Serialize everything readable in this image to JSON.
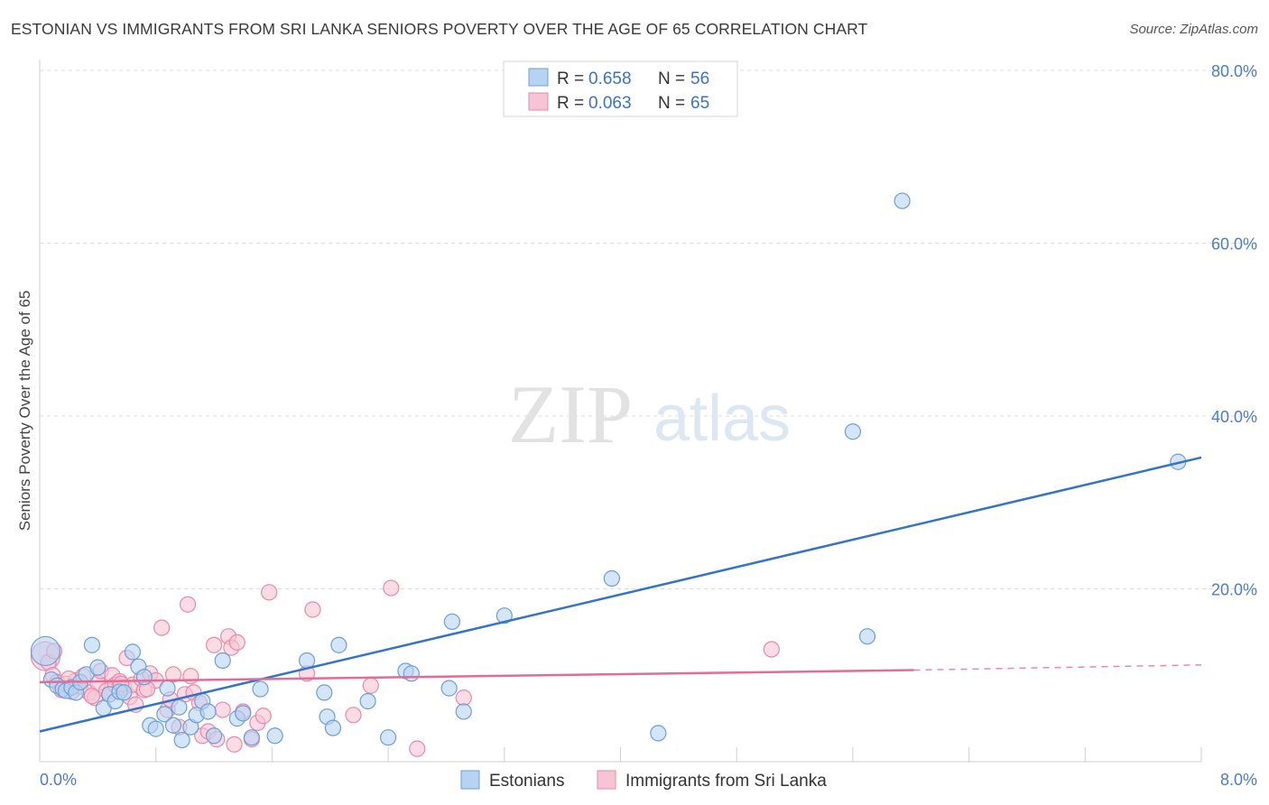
{
  "title": "ESTONIAN VS IMMIGRANTS FROM SRI LANKA SENIORS POVERTY OVER THE AGE OF 65 CORRELATION CHART",
  "source": "Source: ZipAtlas.com",
  "watermark": {
    "zip": "ZIP",
    "atlas": "atlas"
  },
  "colors": {
    "blue_fill": "#b8d3f2",
    "blue_stroke": "#6c9fd8",
    "blue_line": "#3373c9",
    "pink_fill": "#f7c4d4",
    "pink_stroke": "#e889aa",
    "pink_line": "#e36b95",
    "tick_text": "#4a7cc7",
    "grid": "#dddddd"
  },
  "legend": {
    "rows": [
      {
        "r_label": "R = ",
        "r_value": "0.658",
        "n_label": "N = ",
        "n_value": "56"
      },
      {
        "r_label": "R = ",
        "r_value": "0.063",
        "n_label": "N = ",
        "n_value": "65"
      }
    ]
  },
  "chart_data": {
    "type": "scatter",
    "title": "ESTONIAN VS IMMIGRANTS FROM SRI LANKA SENIORS POVERTY OVER THE AGE OF 65 CORRELATION CHART",
    "xlabel": "",
    "ylabel": "Seniors Poverty Over the Age of 65",
    "xlim": [
      0,
      8
    ],
    "ylim": [
      0,
      80
    ],
    "x_tick_labels": [
      "0.0%",
      "8.0%"
    ],
    "y_tick_labels": [
      "20.0%",
      "40.0%",
      "60.0%",
      "80.0%"
    ],
    "y_ticks": [
      20,
      40,
      60,
      80
    ],
    "grid": true,
    "legend_position": "top-center",
    "series": [
      {
        "name": "Estonians",
        "r": 0.658,
        "n": 56,
        "trend": {
          "x": [
            0,
            8
          ],
          "y": [
            3.5,
            35.2
          ]
        },
        "points": [
          [
            0.04,
            12.8
          ],
          [
            0.08,
            9.5
          ],
          [
            0.12,
            8.8
          ],
          [
            0.16,
            8.4
          ],
          [
            0.18,
            8.2
          ],
          [
            0.22,
            8.6
          ],
          [
            0.25,
            8.0
          ],
          [
            0.28,
            9.2
          ],
          [
            0.32,
            10.1
          ],
          [
            0.36,
            13.5
          ],
          [
            0.4,
            10.9
          ],
          [
            0.44,
            6.2
          ],
          [
            0.48,
            7.8
          ],
          [
            0.52,
            7.0
          ],
          [
            0.55,
            8.1
          ],
          [
            0.58,
            8.0
          ],
          [
            0.64,
            12.7
          ],
          [
            0.68,
            11.0
          ],
          [
            0.72,
            9.8
          ],
          [
            0.76,
            4.2
          ],
          [
            0.8,
            3.8
          ],
          [
            0.86,
            5.5
          ],
          [
            0.88,
            8.5
          ],
          [
            0.92,
            4.2
          ],
          [
            0.96,
            6.3
          ],
          [
            0.98,
            2.5
          ],
          [
            1.04,
            4.0
          ],
          [
            1.08,
            5.4
          ],
          [
            1.12,
            7.0
          ],
          [
            1.16,
            5.8
          ],
          [
            1.2,
            3.0
          ],
          [
            1.26,
            11.7
          ],
          [
            1.36,
            5.0
          ],
          [
            1.4,
            5.6
          ],
          [
            1.46,
            2.8
          ],
          [
            1.52,
            8.4
          ],
          [
            1.62,
            3.0
          ],
          [
            1.84,
            11.7
          ],
          [
            1.96,
            8.0
          ],
          [
            1.98,
            5.2
          ],
          [
            2.02,
            3.9
          ],
          [
            2.06,
            13.5
          ],
          [
            2.26,
            7.0
          ],
          [
            2.4,
            2.8
          ],
          [
            2.52,
            10.5
          ],
          [
            2.56,
            10.2
          ],
          [
            2.82,
            8.5
          ],
          [
            2.84,
            16.2
          ],
          [
            2.92,
            5.8
          ],
          [
            3.2,
            16.9
          ],
          [
            3.94,
            21.2
          ],
          [
            4.26,
            3.3
          ],
          [
            5.6,
            38.2
          ],
          [
            5.7,
            14.5
          ],
          [
            5.94,
            64.9
          ],
          [
            7.84,
            34.7
          ]
        ]
      },
      {
        "name": "Immigrants from Sri Lanka",
        "r": 0.063,
        "n": 65,
        "trend": {
          "x": [
            0,
            6.02
          ],
          "y": [
            9.2,
            10.6
          ]
        },
        "trend_dashed": {
          "x": [
            6.02,
            8
          ],
          "y": [
            10.6,
            11.2
          ]
        },
        "points": [
          [
            0.04,
            12.2
          ],
          [
            0.06,
            11.5
          ],
          [
            0.09,
            10.0
          ],
          [
            0.12,
            9.2
          ],
          [
            0.15,
            8.3
          ],
          [
            0.18,
            9.0
          ],
          [
            0.22,
            8.1
          ],
          [
            0.25,
            9.4
          ],
          [
            0.28,
            8.7
          ],
          [
            0.3,
            9.9
          ],
          [
            0.34,
            8.0
          ],
          [
            0.38,
            7.4
          ],
          [
            0.4,
            9.1
          ],
          [
            0.42,
            10.5
          ],
          [
            0.46,
            8.2
          ],
          [
            0.48,
            7.8
          ],
          [
            0.5,
            10.0
          ],
          [
            0.52,
            8.9
          ],
          [
            0.55,
            9.3
          ],
          [
            0.58,
            8.6
          ],
          [
            0.6,
            12.0
          ],
          [
            0.62,
            7.5
          ],
          [
            0.64,
            8.9
          ],
          [
            0.66,
            6.6
          ],
          [
            0.7,
            9.6
          ],
          [
            0.72,
            8.3
          ],
          [
            0.76,
            10.2
          ],
          [
            0.8,
            9.4
          ],
          [
            0.84,
            15.5
          ],
          [
            0.88,
            6.0
          ],
          [
            0.9,
            7.2
          ],
          [
            0.92,
            10.1
          ],
          [
            0.96,
            4.0
          ],
          [
            1.0,
            7.8
          ],
          [
            1.02,
            18.2
          ],
          [
            1.04,
            9.9
          ],
          [
            1.06,
            8.0
          ],
          [
            1.1,
            6.8
          ],
          [
            1.12,
            3.0
          ],
          [
            1.16,
            3.5
          ],
          [
            1.2,
            13.5
          ],
          [
            1.22,
            2.6
          ],
          [
            1.26,
            6.0
          ],
          [
            1.3,
            14.5
          ],
          [
            1.32,
            13.2
          ],
          [
            1.34,
            2.0
          ],
          [
            1.36,
            13.8
          ],
          [
            1.4,
            5.8
          ],
          [
            1.46,
            2.6
          ],
          [
            1.5,
            4.5
          ],
          [
            1.54,
            5.3
          ],
          [
            1.58,
            19.6
          ],
          [
            1.84,
            10.2
          ],
          [
            1.88,
            17.6
          ],
          [
            2.16,
            5.4
          ],
          [
            2.28,
            8.8
          ],
          [
            2.42,
            20.1
          ],
          [
            2.6,
            1.5
          ],
          [
            2.92,
            7.4
          ],
          [
            5.04,
            13.0
          ],
          [
            0.1,
            12.8
          ],
          [
            0.2,
            9.6
          ],
          [
            0.36,
            7.6
          ],
          [
            0.56,
            9.0
          ],
          [
            0.74,
            8.4
          ]
        ]
      }
    ]
  }
}
